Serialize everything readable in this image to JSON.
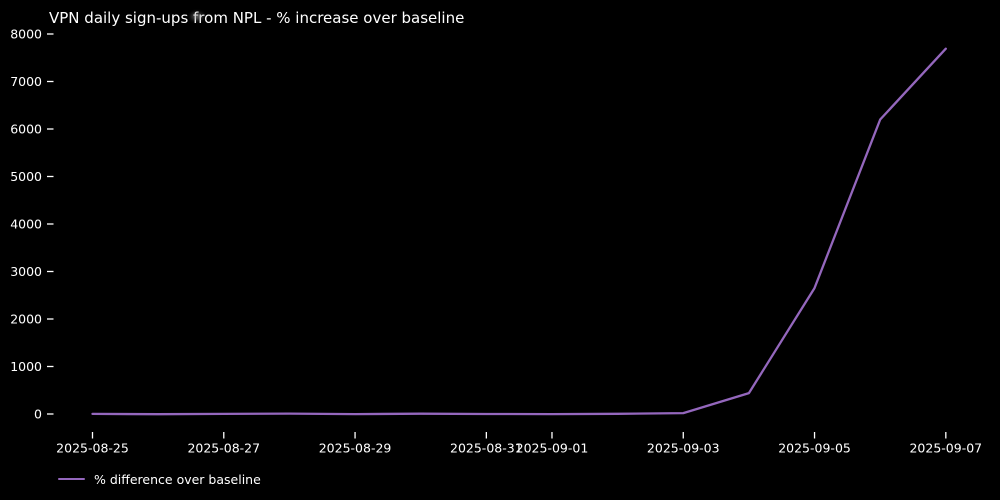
{
  "figure": {
    "background": "#000000",
    "text_color": "#ffffff",
    "tick_color": "#ffffff"
  },
  "chart_data": {
    "type": "line",
    "title": "VPN daily sign-ups from NPL - % increase over baseline",
    "x": [
      "2025-08-25",
      "2025-08-26",
      "2025-08-27",
      "2025-08-28",
      "2025-08-29",
      "2025-08-30",
      "2025-08-31",
      "2025-09-01",
      "2025-09-02",
      "2025-09-03",
      "2025-09-04",
      "2025-09-05",
      "2025-09-06",
      "2025-09-07"
    ],
    "series": [
      {
        "name": "% difference over baseline",
        "color": "#9467bd",
        "values": [
          2,
          -4,
          3,
          9,
          -2,
          6,
          1,
          -3,
          5,
          18,
          440,
          2650,
          6200,
          7690
        ]
      }
    ],
    "xlabel": "",
    "ylabel": "",
    "ylim": [
      0,
      8000
    ],
    "yticks": [
      0,
      1000,
      2000,
      3000,
      4000,
      5000,
      6000,
      7000,
      8000
    ],
    "xticks": [
      "2025-08-25",
      "2025-08-27",
      "2025-08-29",
      "2025-08-31",
      "2025-09-01",
      "2025-09-03",
      "2025-09-05",
      "2025-09-07"
    ],
    "grid": false,
    "legend_position": "lower-left",
    "legend_frame": false
  }
}
